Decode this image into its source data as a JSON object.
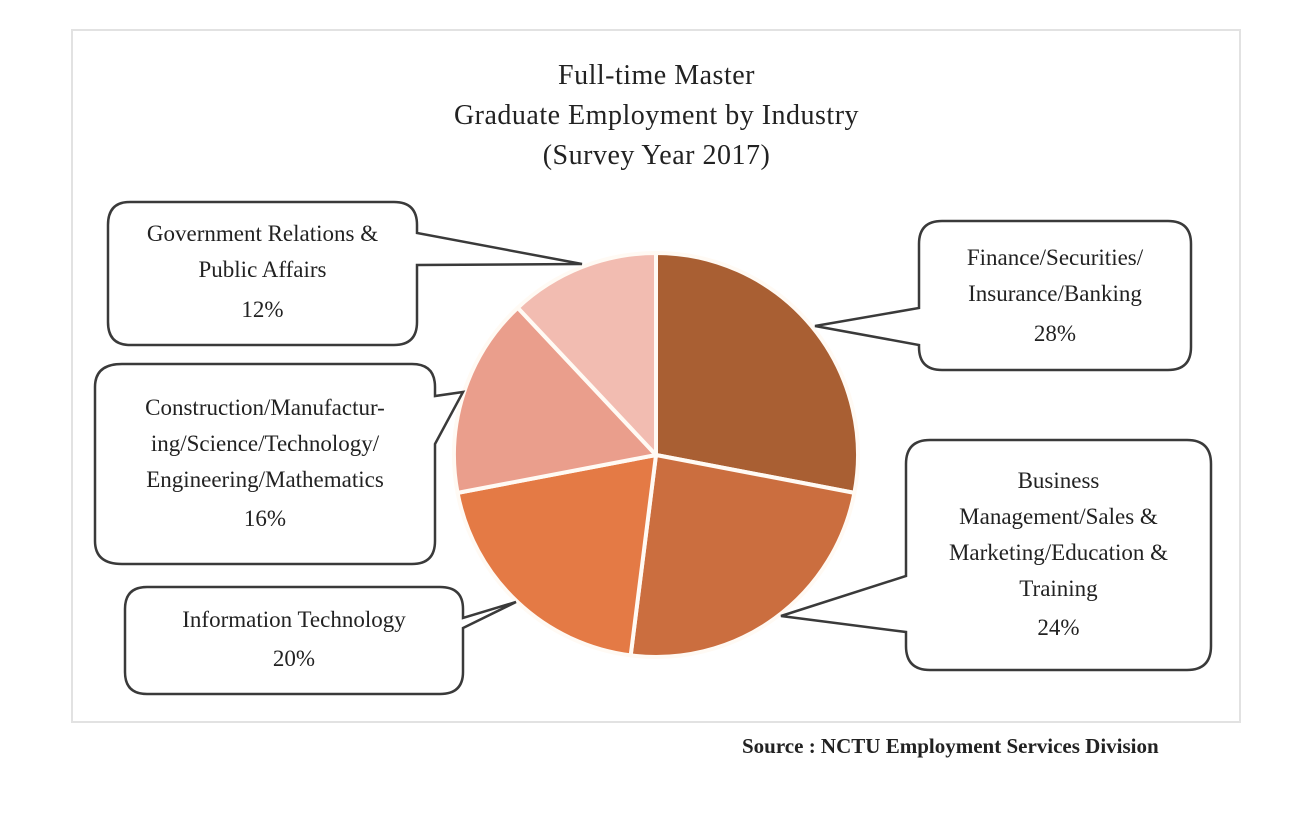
{
  "title": {
    "line1": "Full-time Master",
    "line2": "Graduate Employment by Industry",
    "line3": "(Survey Year 2017)"
  },
  "source": "Source : NCTU Employment Services Division",
  "colors": {
    "finance": "#A95F33",
    "business": "#CB6E3F",
    "it": "#E47A45",
    "construction": "#EA9E8C",
    "government": "#F2BCB1",
    "callout_border": "#3a3a3a"
  },
  "callouts": {
    "finance": {
      "lines": [
        "Finance/Securities/",
        "Insurance/Banking"
      ],
      "pct": "28%"
    },
    "business": {
      "lines": [
        "Business",
        "Management/Sales &",
        "Marketing/Education &",
        "Training"
      ],
      "pct": "24%"
    },
    "it": {
      "lines": [
        "Information Technology"
      ],
      "pct": "20%"
    },
    "construction": {
      "lines": [
        "Construction/Manufactur-",
        "ing/Science/Technology/",
        "Engineering/Mathematics"
      ],
      "pct": "16%"
    },
    "government": {
      "lines": [
        "Government Relations &",
        "Public Affairs"
      ],
      "pct": "12%"
    }
  },
  "chart_data": {
    "type": "pie",
    "title": "Full-time Master Graduate Employment by Industry (Survey Year 2017)",
    "categories": [
      "Finance/Securities/Insurance/Banking",
      "Business Management/Sales & Marketing/Education & Training",
      "Information Technology",
      "Construction/Manufacturing/Science/Technology/Engineering/Mathematics",
      "Government Relations & Public Affairs"
    ],
    "values": [
      28,
      24,
      20,
      16,
      12
    ],
    "unit": "%",
    "colors": [
      "#A95F33",
      "#CB6E3F",
      "#E47A45",
      "#EA9E8C",
      "#F2BCB1"
    ],
    "start_angle": "12 o'clock, clockwise",
    "labels": "callout boxes with category name and percentage",
    "source": "NCTU Employment Services Division"
  }
}
